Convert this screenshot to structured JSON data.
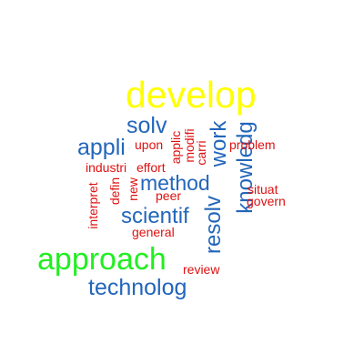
{
  "word_cloud": {
    "palette": {
      "yellow": "#ffff00",
      "green": "#22ee22",
      "blue": "#2266bb",
      "red": "#dd1111"
    },
    "words": [
      {
        "text": "develop",
        "color": "#ffff00",
        "orientation": "horizontal"
      },
      {
        "text": "approach",
        "color": "#22ee22",
        "orientation": "horizontal"
      },
      {
        "text": "technolog",
        "color": "#2266bb",
        "orientation": "horizontal"
      },
      {
        "text": "knowledg",
        "color": "#2266bb",
        "orientation": "vertical"
      },
      {
        "text": "resolv",
        "color": "#2266bb",
        "orientation": "vertical"
      },
      {
        "text": "work",
        "color": "#2266bb",
        "orientation": "vertical"
      },
      {
        "text": "scientif",
        "color": "#2266bb",
        "orientation": "horizontal"
      },
      {
        "text": "method",
        "color": "#2266bb",
        "orientation": "horizontal"
      },
      {
        "text": "appli",
        "color": "#2266bb",
        "orientation": "horizontal"
      },
      {
        "text": "solv",
        "color": "#2266bb",
        "orientation": "horizontal"
      },
      {
        "text": "problem",
        "color": "#dd1111",
        "orientation": "horizontal"
      },
      {
        "text": "situat",
        "color": "#dd1111",
        "orientation": "horizontal"
      },
      {
        "text": "govern",
        "color": "#dd1111",
        "orientation": "horizontal"
      },
      {
        "text": "upon",
        "color": "#dd1111",
        "orientation": "horizontal"
      },
      {
        "text": "industri",
        "color": "#dd1111",
        "orientation": "horizontal"
      },
      {
        "text": "effort",
        "color": "#dd1111",
        "orientation": "horizontal"
      },
      {
        "text": "peer",
        "color": "#dd1111",
        "orientation": "horizontal"
      },
      {
        "text": "general",
        "color": "#dd1111",
        "orientation": "horizontal"
      },
      {
        "text": "review",
        "color": "#dd1111",
        "orientation": "horizontal"
      },
      {
        "text": "interpret",
        "color": "#dd1111",
        "orientation": "vertical"
      },
      {
        "text": "defin",
        "color": "#dd1111",
        "orientation": "vertical"
      },
      {
        "text": "new",
        "color": "#dd1111",
        "orientation": "vertical"
      },
      {
        "text": "applic",
        "color": "#dd1111",
        "orientation": "vertical"
      },
      {
        "text": "modifi",
        "color": "#dd1111",
        "orientation": "vertical"
      },
      {
        "text": "carri",
        "color": "#dd1111",
        "orientation": "vertical"
      }
    ]
  }
}
